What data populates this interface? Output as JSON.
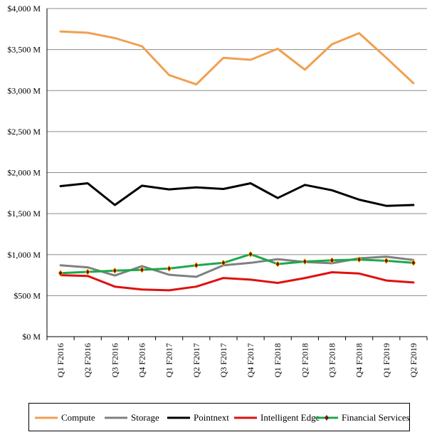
{
  "chart_data": {
    "type": "line",
    "categories": [
      "Q1 F2016",
      "Q2 F2016",
      "Q3 F2016",
      "Q4 F2016",
      "Q1 F2017",
      "Q2 F2017",
      "Q3 F2017",
      "Q4 F2017",
      "Q1 F2018",
      "Q2 F2018",
      "Q3 F2018",
      "Q4 F2018",
      "Q1 F2019",
      "Q2 F2019"
    ],
    "y_ticks": [
      "$0 M",
      "$500 M",
      "$1,000 M",
      "$1,500 M",
      "$2,000 M",
      "$2,500 M",
      "$3,000 M",
      "$3,500 M",
      "$4,000 M"
    ],
    "ylim": [
      0,
      4000
    ],
    "grid": true,
    "legend_position": "bottom",
    "series": [
      {
        "name": "Compute",
        "color": "#F0A050",
        "marker": false,
        "values": [
          3720,
          3705,
          3640,
          3540,
          3190,
          3075,
          3400,
          3375,
          3510,
          3255,
          3565,
          3700,
          3400,
          3090
        ]
      },
      {
        "name": "Storage",
        "color": "#808080",
        "marker": false,
        "values": [
          870,
          845,
          745,
          860,
          755,
          730,
          870,
          900,
          945,
          910,
          895,
          955,
          975,
          935
        ]
      },
      {
        "name": "Pointnext",
        "color": "#000000",
        "marker": false,
        "values": [
          1835,
          1870,
          1605,
          1840,
          1795,
          1820,
          1800,
          1870,
          1690,
          1850,
          1785,
          1670,
          1595,
          1605
        ]
      },
      {
        "name": "Intelligent Edge",
        "color": "#E01010",
        "marker": false,
        "values": [
          750,
          740,
          610,
          575,
          565,
          610,
          715,
          695,
          655,
          715,
          785,
          770,
          685,
          660
        ]
      },
      {
        "name": "Financial Services",
        "color": "#1EA84A",
        "marker": true,
        "marker_color": "#7A1010",
        "values": [
          775,
          790,
          805,
          815,
          830,
          870,
          900,
          1005,
          885,
          915,
          930,
          940,
          925,
          900
        ]
      }
    ]
  }
}
